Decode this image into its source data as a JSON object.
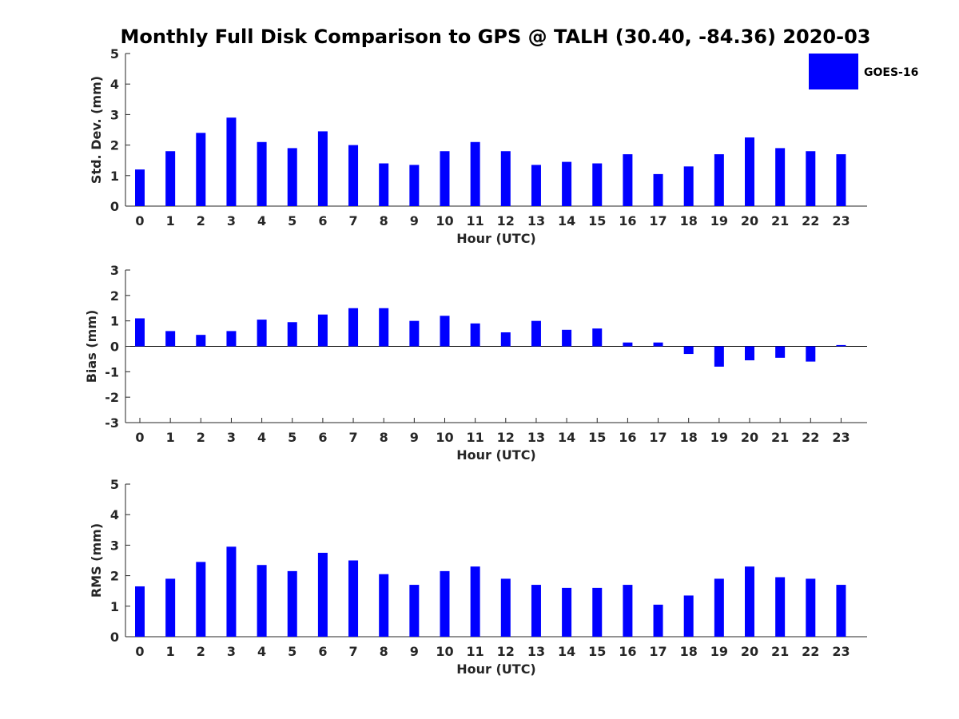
{
  "title": "Monthly Full Disk Comparison to GPS @ TALH (30.40, -84.36) 2020-03",
  "legend": {
    "label": "GOES-16",
    "color": "#0000ff",
    "placement": "top-right"
  },
  "chart_data": [
    {
      "type": "bar",
      "xlabel": "Hour (UTC)",
      "ylabel": "Std. Dev. (mm)",
      "ylim": [
        0,
        5
      ],
      "yticks": [
        0,
        1,
        2,
        3,
        4,
        5
      ],
      "categories": [
        "0",
        "1",
        "2",
        "3",
        "4",
        "5",
        "6",
        "7",
        "8",
        "9",
        "10",
        "11",
        "12",
        "13",
        "14",
        "15",
        "16",
        "17",
        "18",
        "19",
        "20",
        "21",
        "22",
        "23"
      ],
      "series": [
        {
          "name": "GOES-16",
          "color": "#0000ff",
          "values": [
            1.2,
            1.8,
            2.4,
            2.9,
            2.1,
            1.9,
            2.45,
            2.0,
            1.4,
            1.35,
            1.8,
            2.1,
            1.8,
            1.35,
            1.45,
            1.4,
            1.7,
            1.05,
            1.3,
            1.7,
            2.25,
            1.9,
            1.8,
            1.7
          ]
        }
      ],
      "grid": false
    },
    {
      "type": "bar",
      "xlabel": "Hour (UTC)",
      "ylabel": "Bias (mm)",
      "ylim": [
        -3,
        3
      ],
      "yticks": [
        -3,
        -2,
        -1,
        0,
        1,
        2,
        3
      ],
      "categories": [
        "0",
        "1",
        "2",
        "3",
        "4",
        "5",
        "6",
        "7",
        "8",
        "9",
        "10",
        "11",
        "12",
        "13",
        "14",
        "15",
        "16",
        "17",
        "18",
        "19",
        "20",
        "21",
        "22",
        "23"
      ],
      "series": [
        {
          "name": "GOES-16",
          "color": "#0000ff",
          "values": [
            1.1,
            0.6,
            0.45,
            0.6,
            1.05,
            0.95,
            1.25,
            1.5,
            1.5,
            1.0,
            1.2,
            0.9,
            0.55,
            1.0,
            0.65,
            0.7,
            0.15,
            0.15,
            -0.3,
            -0.8,
            -0.55,
            -0.45,
            -0.6,
            0.05
          ]
        }
      ],
      "grid": false
    },
    {
      "type": "bar",
      "xlabel": "Hour (UTC)",
      "ylabel": "RMS (mm)",
      "ylim": [
        0,
        5
      ],
      "yticks": [
        0,
        1,
        2,
        3,
        4,
        5
      ],
      "categories": [
        "0",
        "1",
        "2",
        "3",
        "4",
        "5",
        "6",
        "7",
        "8",
        "9",
        "10",
        "11",
        "12",
        "13",
        "14",
        "15",
        "16",
        "17",
        "18",
        "19",
        "20",
        "21",
        "22",
        "23"
      ],
      "series": [
        {
          "name": "GOES-16",
          "color": "#0000ff",
          "values": [
            1.65,
            1.9,
            2.45,
            2.95,
            2.35,
            2.15,
            2.75,
            2.5,
            2.05,
            1.7,
            2.15,
            2.3,
            1.9,
            1.7,
            1.6,
            1.6,
            1.7,
            1.05,
            1.35,
            1.9,
            2.3,
            1.95,
            1.9,
            1.7
          ]
        }
      ],
      "grid": false
    }
  ]
}
